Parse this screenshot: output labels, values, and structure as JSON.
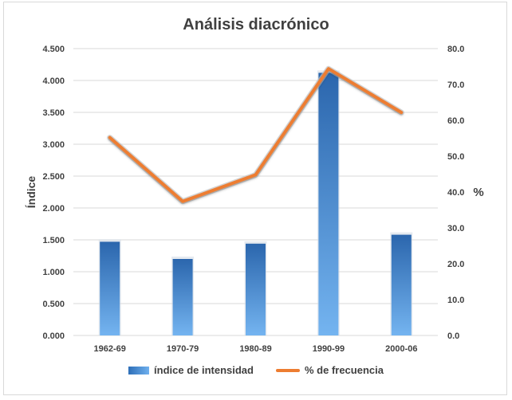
{
  "chart_data": {
    "type": "bar",
    "title": "Análisis diacrónico",
    "categories": [
      "1962-69",
      "1970-79",
      "1980-89",
      "1990-99",
      "2000-06"
    ],
    "ylabel_left": "Índice",
    "ylabel_right": "%",
    "ylim_left": [
      0,
      4.5
    ],
    "ylim_right": [
      0,
      80
    ],
    "yticks_left": [
      "0.000",
      "0.500",
      "1.000",
      "1.500",
      "2.000",
      "2.500",
      "3.000",
      "3.500",
      "4.000",
      "4.500"
    ],
    "yticks_right": [
      "0.0",
      "10.0",
      "20.0",
      "30.0",
      "40.0",
      "50.0",
      "60.0",
      "70.0",
      "80.0"
    ],
    "grid": true,
    "legend_position": "bottom",
    "series": [
      {
        "name": "índice de intensidad",
        "type": "bar",
        "axis": "left",
        "values": [
          1.47,
          1.2,
          1.44,
          4.12,
          1.58
        ],
        "color": "#4a8ad4"
      },
      {
        "name": "% de frecuencia",
        "type": "line",
        "axis": "right",
        "values": [
          55.2,
          37.4,
          44.8,
          74.4,
          62.2
        ],
        "color": "#ed7d31"
      }
    ]
  }
}
